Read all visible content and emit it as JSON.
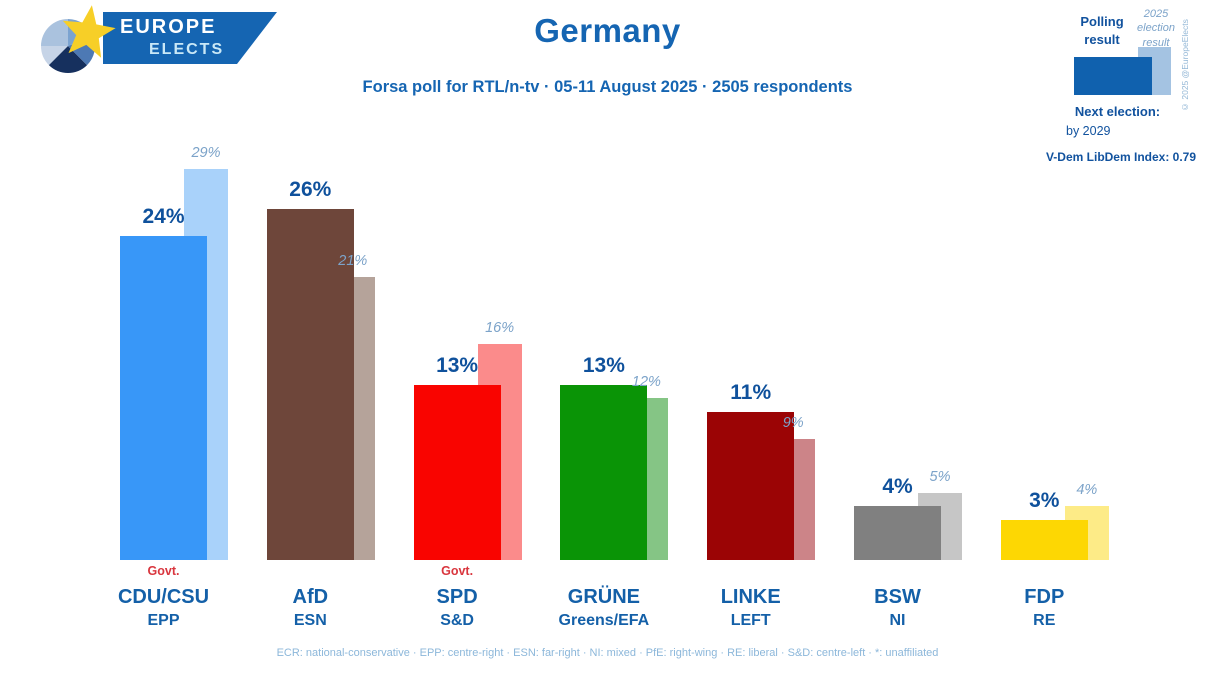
{
  "logo": {
    "line1": "EUROPE",
    "line2": "ELECTS"
  },
  "header": {
    "title": "Germany",
    "subtitle": "Forsa poll for RTL/n-tv · 05-11 August 2025 · 2505 respondents"
  },
  "legend": {
    "polling_label": "Polling result",
    "election_label": "2025 election result",
    "copyright": "© 2025 @EuropeElects",
    "next_election_label": "Next election:",
    "next_election_value": "by 2029",
    "vdem_label": "V-Dem LibDem Index: 0.79",
    "polling_color": "#1061ae",
    "election_color": "#a4c3e2"
  },
  "chart_data": {
    "type": "bar",
    "unit": "%",
    "ylim": [
      0,
      30
    ],
    "govt_label": "Govt.",
    "series_names": [
      "Polling result",
      "2025 election result"
    ],
    "parties": [
      {
        "name": "CDU/CSU",
        "group": "EPP",
        "poll": 24,
        "election": 29,
        "color": "#3897f8",
        "election_color": "#a9d2fa",
        "govt": true
      },
      {
        "name": "AfD",
        "group": "ESN",
        "poll": 26,
        "election": 21,
        "color": "#6e463a",
        "election_color": "#b5a39a",
        "govt": false
      },
      {
        "name": "SPD",
        "group": "S&D",
        "poll": 13,
        "election": 16,
        "color": "#f90400",
        "election_color": "#fb8b8b",
        "govt": true
      },
      {
        "name": "GRÜNE",
        "group": "Greens/EFA",
        "poll": 13,
        "election": 12,
        "color": "#0a9406",
        "election_color": "#85c585",
        "govt": false
      },
      {
        "name": "LINKE",
        "group": "LEFT",
        "poll": 11,
        "election": 9,
        "color": "#9b0405",
        "election_color": "#cc8488",
        "govt": false
      },
      {
        "name": "BSW",
        "group": "NI",
        "poll": 4,
        "election": 5,
        "color": "#808080",
        "election_color": "#c6c6c6",
        "govt": false
      },
      {
        "name": "FDP",
        "group": "RE",
        "poll": 3,
        "election": 4,
        "color": "#fdd703",
        "election_color": "#fdeb87",
        "govt": false
      }
    ]
  },
  "footer": {
    "legend_text": "ECR: national-conservative · EPP: centre-right · ESN: far-right · NI: mixed · PfE: right-wing · RE: liberal · S&D: centre-left · *: unaffiliated"
  }
}
